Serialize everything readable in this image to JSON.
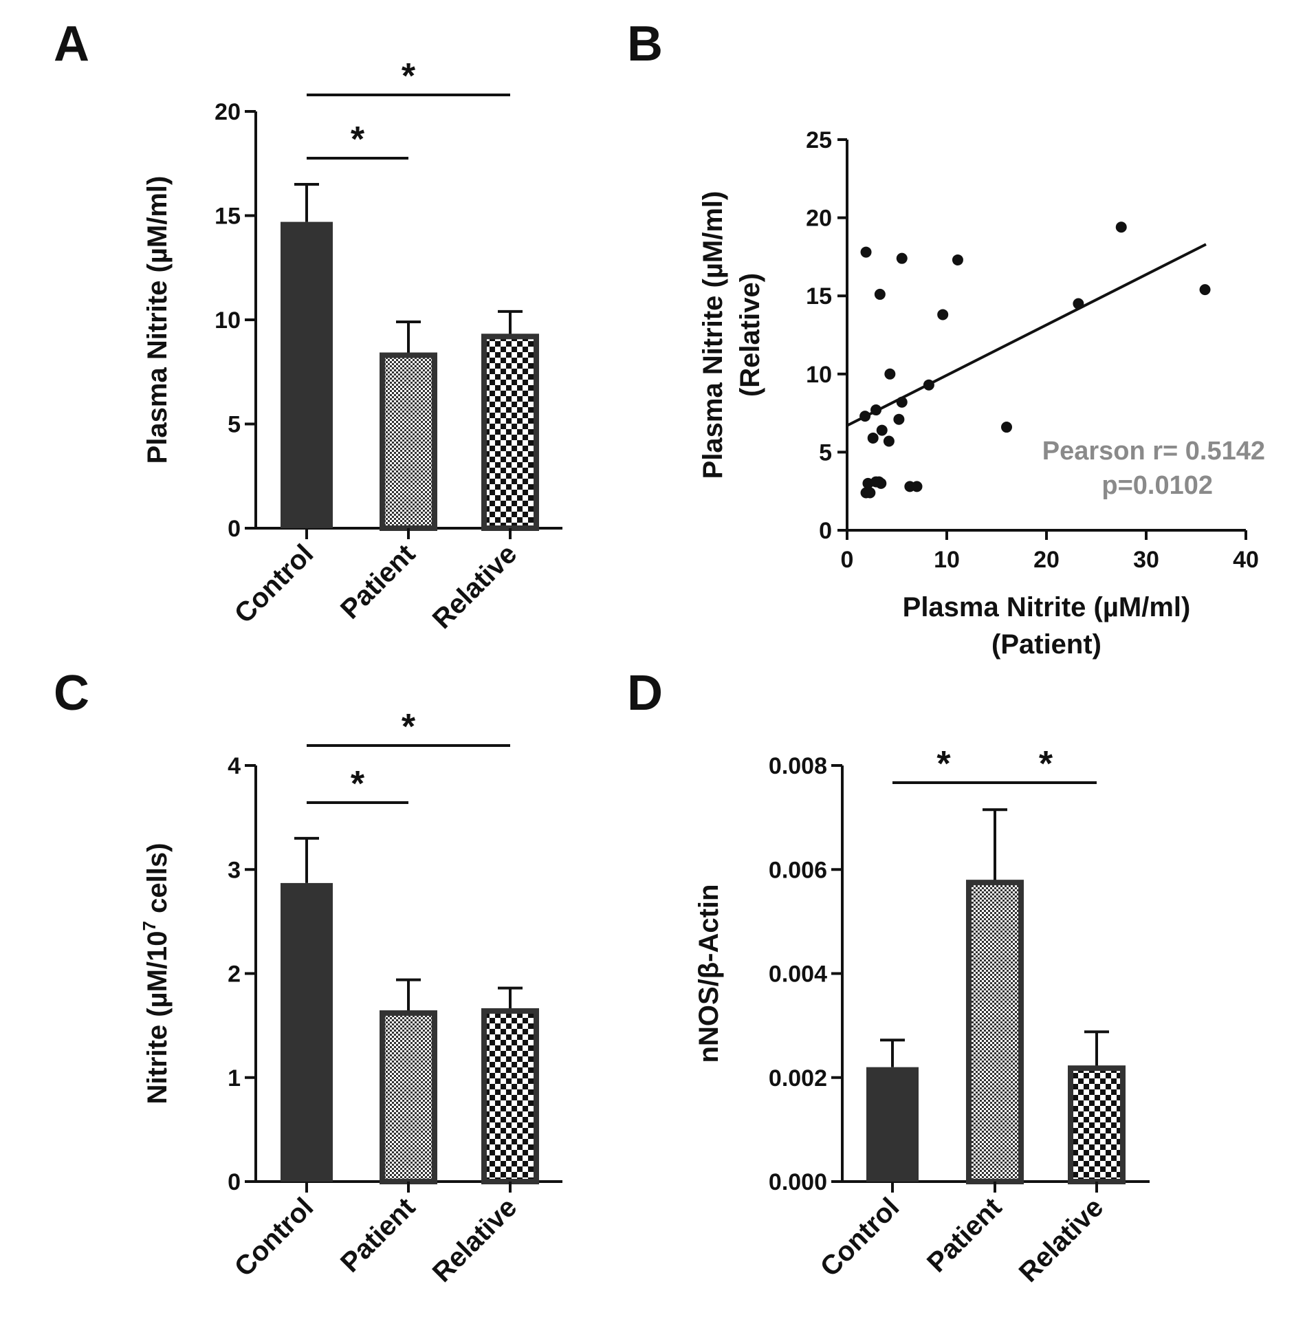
{
  "chart_data": [
    {
      "panel": "A",
      "type": "bar",
      "categories": [
        "Control",
        "Patient",
        "Relative"
      ],
      "values": [
        14.7,
        8.3,
        9.2
      ],
      "errors": [
        1.8,
        1.6,
        1.2
      ],
      "ylabel": "Plasma Nitrite (µM/ml)",
      "ylim": [
        0,
        20
      ],
      "yticks": [
        "0",
        "5",
        "10",
        "15",
        "20"
      ],
      "significance": [
        {
          "from": 0,
          "to": 1,
          "label": "*"
        },
        {
          "from": 0,
          "to": 2,
          "label": "*"
        }
      ]
    },
    {
      "panel": "B",
      "type": "scatter",
      "x": [
        1.8,
        1.9,
        2.1,
        2.6,
        3.2,
        3.5,
        1.9,
        3.3,
        4.2,
        5.2,
        5.5,
        6.3,
        7.0,
        8.2,
        9.6,
        16.0,
        3.4,
        4.3,
        2.9,
        11.1,
        5.5,
        2.9,
        2.3,
        23.2,
        27.5,
        35.9
      ],
      "y": [
        7.3,
        2.4,
        3.0,
        5.9,
        3.1,
        6.4,
        17.8,
        15.1,
        5.7,
        7.1,
        8.2,
        2.8,
        2.8,
        9.3,
        13.8,
        6.6,
        3.0,
        10.0,
        7.7,
        17.3,
        17.4,
        3.1,
        2.4,
        14.5,
        19.4,
        15.4
      ],
      "fit": {
        "x": [
          0,
          36
        ],
        "y": [
          6.7,
          18.3
        ]
      },
      "xlabel": "Plasma Nitrite (µM/ml)",
      "xlabel2": "(Patient)",
      "ylabel": "Plasma Nitrite (µM/ml)",
      "ylabel2": "(Relative)",
      "xlim": [
        0,
        40
      ],
      "ylim": [
        0,
        25
      ],
      "xticks": [
        "0",
        "10",
        "20",
        "30",
        "40"
      ],
      "yticks": [
        "0",
        "5",
        "10",
        "15",
        "20",
        "25"
      ],
      "annotation": {
        "line1": "Pearson r= 0.5142",
        "line2": "p=0.0102"
      }
    },
    {
      "panel": "C",
      "type": "bar",
      "categories": [
        "Control",
        "Patient",
        "Relative"
      ],
      "values": [
        2.87,
        1.62,
        1.64
      ],
      "errors": [
        0.43,
        0.32,
        0.22
      ],
      "ylabel_main": "Nitrite (µM/10",
      "ylabel_sup": "7",
      "ylabel_rest": " cells)",
      "ylim": [
        0,
        4
      ],
      "yticks": [
        "0",
        "1",
        "2",
        "3",
        "4"
      ],
      "significance": [
        {
          "from": 0,
          "to": 1,
          "label": "*"
        },
        {
          "from": 0,
          "to": 2,
          "label": "*"
        }
      ]
    },
    {
      "panel": "D",
      "type": "bar",
      "categories": [
        "Control",
        "Patient",
        "Relative"
      ],
      "values": [
        0.0022,
        0.00575,
        0.00218
      ],
      "errors": [
        0.00052,
        0.0014,
        0.0007
      ],
      "ylabel": "nNOS/β-Actin",
      "ylim": [
        0,
        0.008
      ],
      "yticks": [
        "0.000",
        "0.002",
        "0.004",
        "0.006",
        "0.008"
      ],
      "significance": [
        {
          "from": 0,
          "to": 1,
          "label": "*"
        },
        {
          "from": 1,
          "to": 2,
          "label": "*"
        }
      ]
    }
  ],
  "colors": {
    "control": "#333333",
    "axis": "#111111",
    "annotation": "#8a8a8a"
  }
}
